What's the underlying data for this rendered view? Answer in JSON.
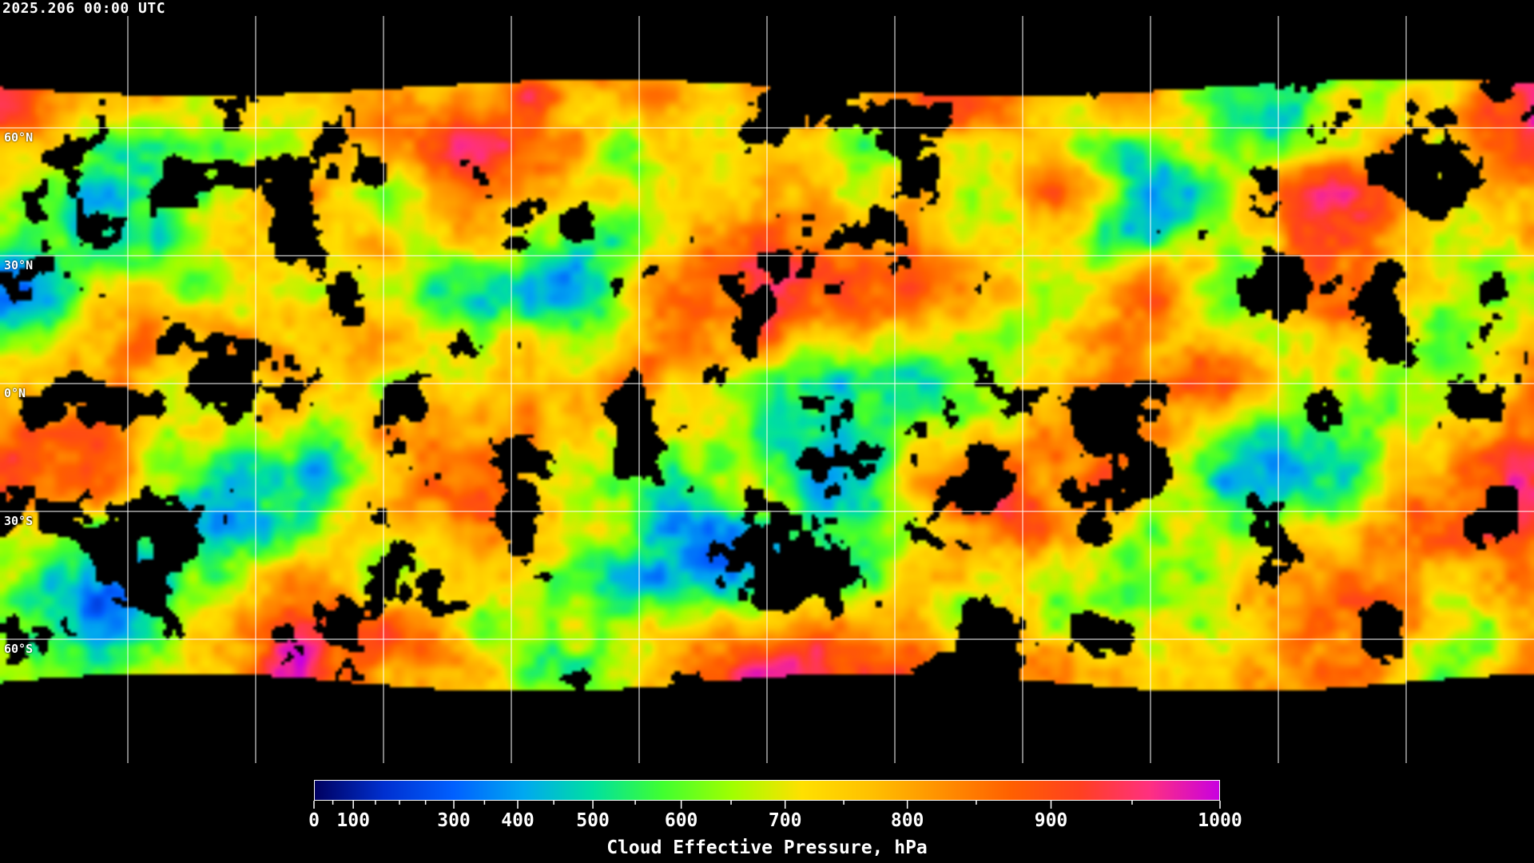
{
  "header": {
    "timestamp": "2025.206 00:00 UTC"
  },
  "map": {
    "projection": "equirectangular",
    "field": "cloud effective pressure",
    "gridlines": "30-degree lat/lon, white",
    "coastlines": "white",
    "no_data_color": "#000000",
    "lat_labels": [
      "60°N",
      "30°N",
      "0°N",
      "30°S",
      "60°S"
    ]
  },
  "colorbar": {
    "title": "Cloud Effective Pressure, hPa",
    "range": [
      0,
      1000
    ],
    "scale": "nonlinear (expanded at high pressure)",
    "tick_labels": [
      "0",
      "100",
      "300",
      "400",
      "500",
      "600",
      "700",
      "800",
      "900",
      "1000"
    ],
    "minor_ticks": [
      50,
      150,
      200,
      250,
      350,
      450,
      550,
      650,
      750,
      850,
      950
    ],
    "colors": [
      "#000060",
      "#0030d0",
      "#0060ff",
      "#00a8f0",
      "#00e0a0",
      "#40ff30",
      "#a0ff00",
      "#ffe000",
      "#ffc000",
      "#ff9000",
      "#ff6000",
      "#ff4020",
      "#ff3080",
      "#c800e0"
    ]
  }
}
